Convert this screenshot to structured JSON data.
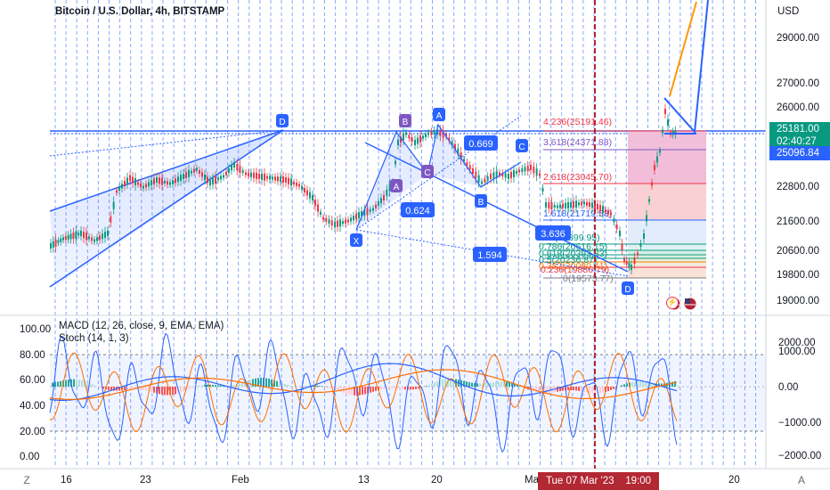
{
  "header": {
    "title": "Bitcoin / U.S. Dollar, 4h, BITSTAMP",
    "currency": "USD"
  },
  "price_scale": {
    "labels": [
      "29000.00",
      "27000.00",
      "26000.00",
      "22800.00",
      "21600.00",
      "20600.00",
      "19800.00",
      "19000.00"
    ],
    "current_price": "25181.00",
    "countdown": "02:40:27",
    "line_price": "25096.84"
  },
  "indicator_scale": {
    "left_labels": [
      "100.00",
      "80.00",
      "60.00",
      "40.00",
      "20.00",
      "0.00"
    ],
    "right_labels": [
      "2000.00",
      "1000.00",
      "0.00",
      "−1000.00",
      "−2000.00"
    ]
  },
  "time_axis": {
    "labels": [
      "16",
      "23",
      "Feb",
      "13",
      "20",
      "Mar",
      "20"
    ],
    "crosshair_date": "Tue 07 Mar '23",
    "crosshair_time": "19:00",
    "left_button": "Z",
    "right_button": "A"
  },
  "indicators": {
    "macd": "MACD (12, 26, close, 9, EMA, EMA)",
    "stoch": "Stoch (14, 1, 3)"
  },
  "pattern": {
    "points": [
      "X",
      "A",
      "B",
      "C",
      "D"
    ],
    "left_points": [
      "D"
    ],
    "ratios": [
      "0.669",
      "0.624",
      "3.636",
      "1.594"
    ],
    "fib_levels": [
      "4.236(25191.46)",
      "3.618(24371.88)",
      "2.618(23045.70)",
      "1.618(21719.53)",
      "1(20899.95)",
      "0.786(20616.15)",
      "0.618(20393.33)",
      "0.5(20236.87)",
      "0.382(20080.41)",
      "0.236(19886.79)",
      "0(19573.77)"
    ]
  },
  "colors": {
    "up": "#089981",
    "down": "#f23645",
    "macd": "#2962ff",
    "signal": "#ff6d00",
    "crosshair": "#b22833",
    "pattern": "#2962ff"
  },
  "icons": [
    "lightning-icon",
    "us-flag-icon",
    "us-flag-icon"
  ]
}
